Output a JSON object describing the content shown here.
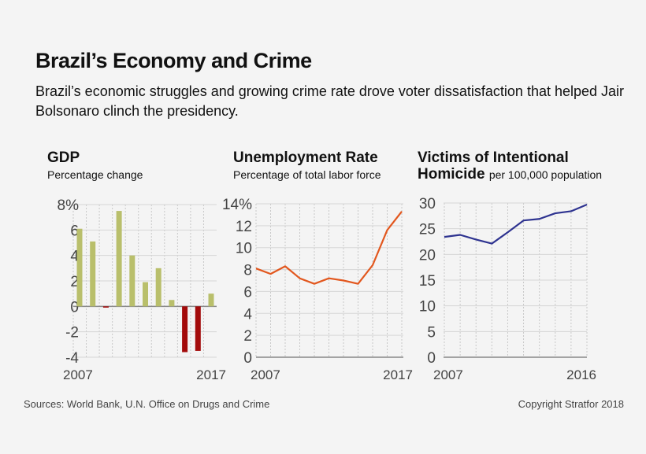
{
  "title": "Brazil’s Economy and Crime",
  "subtitle": "Brazil’s economic struggles and growing crime rate drove voter dissatisfaction that helped Jair Bolsonaro clinch the presidency.",
  "footer": {
    "source": "Sources: World Bank, U.N. Office on Drugs and Crime",
    "copyright": "Copyright Stratfor 2018"
  },
  "chart_data": [
    {
      "type": "bar",
      "title": "GDP",
      "subtitle": "Percentage change",
      "x": [
        2007,
        2008,
        2009,
        2010,
        2011,
        2012,
        2013,
        2014,
        2015,
        2016,
        2017
      ],
      "values": [
        6.1,
        5.1,
        -0.1,
        7.5,
        4.0,
        1.9,
        3.0,
        0.5,
        -3.6,
        -3.5,
        1.0
      ],
      "ylim": [
        -4,
        8
      ],
      "yticks": [
        "8%",
        "6",
        "4",
        "2",
        "0",
        "-2",
        "-4"
      ],
      "xticks": [
        "2007",
        "2017"
      ],
      "colors": {
        "positive": "#b9bf6b",
        "negative": "#a30b0b"
      },
      "grid": true
    },
    {
      "type": "line",
      "title": "Unemployment Rate",
      "subtitle": "Percentage of total labor force",
      "x": [
        2007,
        2008,
        2009,
        2010,
        2011,
        2012,
        2013,
        2014,
        2015,
        2016,
        2017
      ],
      "values": [
        8.1,
        7.6,
        8.3,
        7.2,
        6.7,
        7.2,
        7.0,
        6.7,
        8.4,
        11.6,
        13.3
      ],
      "ylim": [
        0,
        14
      ],
      "yticks": [
        "14%",
        "12",
        "10",
        "8",
        "6",
        "4",
        "2",
        "0"
      ],
      "xticks": [
        "2007",
        "2017"
      ],
      "color": "#e2571e",
      "grid": true
    },
    {
      "type": "line",
      "title": "Victims of Intentional Homicide",
      "subtitle": "per 100,000 population",
      "x": [
        2007,
        2008,
        2009,
        2010,
        2011,
        2012,
        2013,
        2014,
        2015,
        2016
      ],
      "values": [
        23.4,
        23.8,
        22.9,
        22.1,
        24.3,
        26.6,
        26.9,
        28.0,
        28.4,
        29.7
      ],
      "ylim": [
        0,
        30
      ],
      "yticks": [
        "30",
        "25",
        "20",
        "15",
        "10",
        "5",
        "0"
      ],
      "xticks": [
        "2007",
        "2016"
      ],
      "color": "#2e3390",
      "grid": true
    }
  ]
}
